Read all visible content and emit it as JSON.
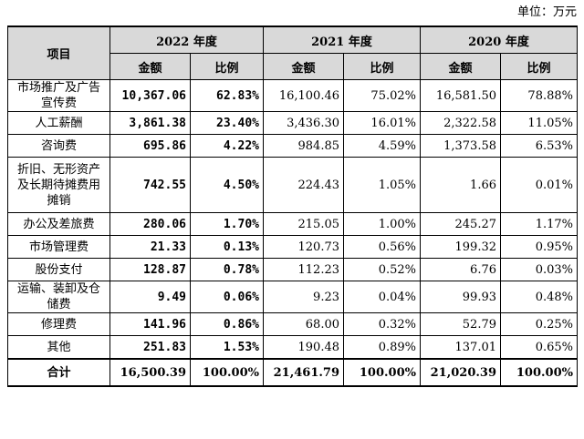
{
  "unit_note": "单位：万元",
  "header": {
    "item": "项目",
    "years": [
      "2022 年度",
      "2021 年度",
      "2020 年度"
    ],
    "amount": "金额",
    "ratio": "比例"
  },
  "rows": [
    {
      "item": "市场推广及广告宣传费",
      "v": [
        "10,367.06",
        "62.83%",
        "16,100.46",
        "75.02%",
        "16,581.50",
        "78.88%"
      ]
    },
    {
      "item": "人工薪酬",
      "v": [
        "3,861.38",
        "23.40%",
        "3,436.30",
        "16.01%",
        "2,322.58",
        "11.05%"
      ]
    },
    {
      "item": "咨询费",
      "v": [
        "695.86",
        "4.22%",
        "984.85",
        "4.59%",
        "1,373.58",
        "6.53%"
      ]
    },
    {
      "item": "折旧、无形资产及长期待摊费用摊销",
      "v": [
        "742.55",
        "4.50%",
        "224.43",
        "1.05%",
        "1.66",
        "0.01%"
      ]
    },
    {
      "item": "办公及差旅费",
      "v": [
        "280.06",
        "1.70%",
        "215.05",
        "1.00%",
        "245.27",
        "1.17%"
      ]
    },
    {
      "item": "市场管理费",
      "v": [
        "21.33",
        "0.13%",
        "120.73",
        "0.56%",
        "199.32",
        "0.95%"
      ]
    },
    {
      "item": "股份支付",
      "v": [
        "128.87",
        "0.78%",
        "112.23",
        "0.52%",
        "6.76",
        "0.03%"
      ]
    },
    {
      "item": "运输、装卸及仓储费",
      "v": [
        "9.49",
        "0.06%",
        "9.23",
        "0.04%",
        "99.93",
        "0.48%"
      ]
    },
    {
      "item": "修理费",
      "v": [
        "141.96",
        "0.86%",
        "68.00",
        "0.32%",
        "52.79",
        "0.25%"
      ]
    },
    {
      "item": "其他",
      "v": [
        "251.83",
        "1.53%",
        "190.48",
        "0.89%",
        "137.01",
        "0.65%"
      ]
    }
  ],
  "total": {
    "item": "合计",
    "v": [
      "16,500.39",
      "100.00%",
      "21,461.79",
      "100.00%",
      "21,020.39",
      "100.00%"
    ]
  }
}
